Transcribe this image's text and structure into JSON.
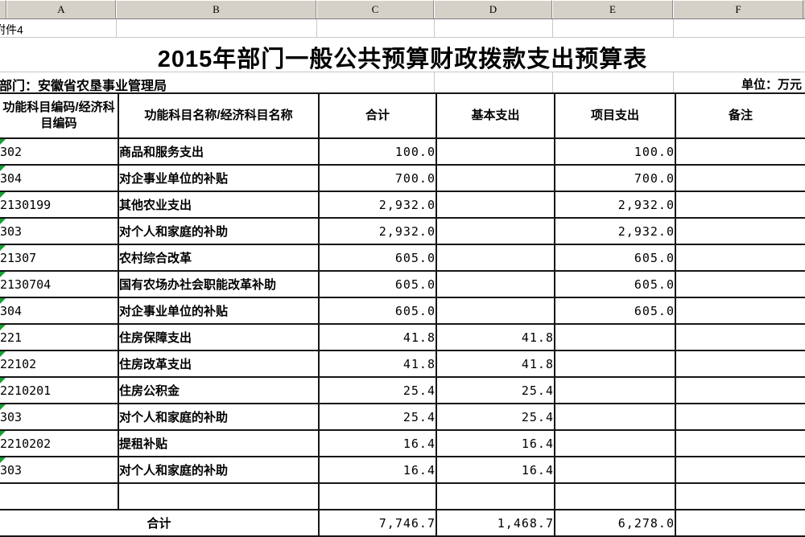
{
  "colors": {
    "header_strip_bg": "#d5d1c8",
    "table_border": "#161616",
    "gridline": "#c8c8c8",
    "marker_green": "#14a033"
  },
  "column_strip": {
    "letters": [
      "A",
      "B",
      "C",
      "D",
      "E",
      "F"
    ]
  },
  "prelude": {
    "attachment": "附件4",
    "title": "2015年部门一般公共预算财政拨款支出预算表",
    "department": "部门：安徽省农垦事业管理局",
    "unit": "单位：万元"
  },
  "table": {
    "headers": [
      "功能科目编码/经济科目编码",
      "功能科目名称/经济科目名称",
      "合计",
      "基本支出",
      "项目支出",
      "备注"
    ],
    "rows": [
      {
        "code": "302",
        "code_level": 3,
        "name": "商品和服务支出",
        "name_level": 3,
        "total": "100.0",
        "basic": "",
        "project": "100.0",
        "remark": "",
        "marker": true
      },
      {
        "code": "304",
        "code_level": 3,
        "name": "对企事业单位的补贴",
        "name_level": 3,
        "total": "700.0",
        "basic": "",
        "project": "700.0",
        "remark": "",
        "marker": true
      },
      {
        "code": "2130199",
        "code_level": 2,
        "name": "其他农业支出",
        "name_level": 4,
        "total": "2,932.0",
        "basic": "",
        "project": "2,932.0",
        "remark": "",
        "marker": true
      },
      {
        "code": "303",
        "code_level": 3,
        "name": "对个人和家庭的补助",
        "name_level": 3,
        "total": "2,932.0",
        "basic": "",
        "project": "2,932.0",
        "remark": "",
        "marker": true
      },
      {
        "code": "21307",
        "code_level": 1,
        "name": "农村综合改革",
        "name_level": 1,
        "total": "605.0",
        "basic": "",
        "project": "605.0",
        "remark": "",
        "marker": true
      },
      {
        "code": "2130704",
        "code_level": 2,
        "name": "国有农场办社会职能改革补助",
        "name_level": 3,
        "total": "605.0",
        "basic": "",
        "project": "605.0",
        "remark": "",
        "marker": true
      },
      {
        "code": "304",
        "code_level": 3,
        "name": "对企事业单位的补贴",
        "name_level": 3,
        "total": "605.0",
        "basic": "",
        "project": "605.0",
        "remark": "",
        "marker": true
      },
      {
        "code": "221",
        "code_level": 0,
        "name": "住房保障支出",
        "name_level": 0,
        "total": "41.8",
        "basic": "41.8",
        "project": "",
        "remark": "",
        "marker": true
      },
      {
        "code": "22102",
        "code_level": 1,
        "name": "住房改革支出",
        "name_level": 1,
        "total": "41.8",
        "basic": "41.8",
        "project": "",
        "remark": "",
        "marker": true
      },
      {
        "code": "2210201",
        "code_level": 2,
        "name": "住房公积金",
        "name_level": 2,
        "total": "25.4",
        "basic": "25.4",
        "project": "",
        "remark": "",
        "marker": true
      },
      {
        "code": "303",
        "code_level": 3,
        "name": "对个人和家庭的补助",
        "name_level": 3,
        "total": "25.4",
        "basic": "25.4",
        "project": "",
        "remark": "",
        "marker": true
      },
      {
        "code": "2210202",
        "code_level": 2,
        "name": "提租补贴",
        "name_level": 2,
        "total": "16.4",
        "basic": "16.4",
        "project": "",
        "remark": "",
        "marker": true
      },
      {
        "code": "303",
        "code_level": 3,
        "name": "对个人和家庭的补助",
        "name_level": 3,
        "total": "16.4",
        "basic": "16.4",
        "project": "",
        "remark": "",
        "marker": true
      }
    ],
    "empty_row": {
      "code": "",
      "name": "",
      "total": "",
      "basic": "",
      "project": "",
      "remark": ""
    },
    "total_row": {
      "label": "合计",
      "total": "7,746.7",
      "basic": "1,468.7",
      "project": "6,278.0",
      "remark": ""
    }
  }
}
